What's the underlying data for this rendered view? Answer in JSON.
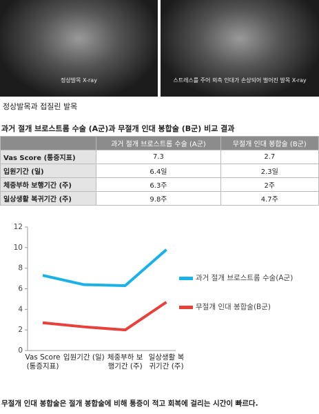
{
  "images": [
    {
      "caption": "정상발목 X-ray"
    },
    {
      "caption": "스트레스를 주어 외측 인대가 손상되어 벌어진 발목 X-ray"
    }
  ],
  "caption": "정상발목과 접질린 발목",
  "table": {
    "title": "과거 절개 브로스트롬 수술 (A군)과 무절개 인대 봉합술 (B군) 비교 결과",
    "header": [
      "",
      "과거 절개 브로스트롬 수술 (A군)",
      "무절개 인대 봉합술 (B군)"
    ],
    "rows": [
      [
        "Vas Score (통증지표)",
        "7.3",
        "2.7"
      ],
      [
        "입원기간 (일)",
        "6.4일",
        "2.3일"
      ],
      [
        "체중부하 보행기간 (주)",
        "6.3주",
        "2주"
      ],
      [
        "일상생활 복귀기간 (주)",
        "9.8주",
        "4.7주"
      ]
    ]
  },
  "chart_data": {
    "type": "line",
    "categories": [
      "Vas Score (통증지표)",
      "입원기간 (일)",
      "체중부하 보행기간 (주)",
      "일상생활 복귀기간 (주)"
    ],
    "series": [
      {
        "name": "과거 절개 브로스트롬 수술(A군)",
        "color": "#1ab0e8",
        "values": [
          7.3,
          6.4,
          6.3,
          9.8
        ]
      },
      {
        "name": "무절개 인대 봉합술(B군)",
        "color": "#e8403a",
        "values": [
          2.7,
          2.3,
          2.0,
          4.7
        ]
      }
    ],
    "ylim": [
      0,
      12
    ],
    "yticks": [
      0,
      2,
      4,
      6,
      8,
      10,
      12
    ]
  },
  "footer": "무절개 인대 봉합술은 절개 봉합술에 비해 통증이 적고 회복에 걸리는 시간이 빠르다."
}
